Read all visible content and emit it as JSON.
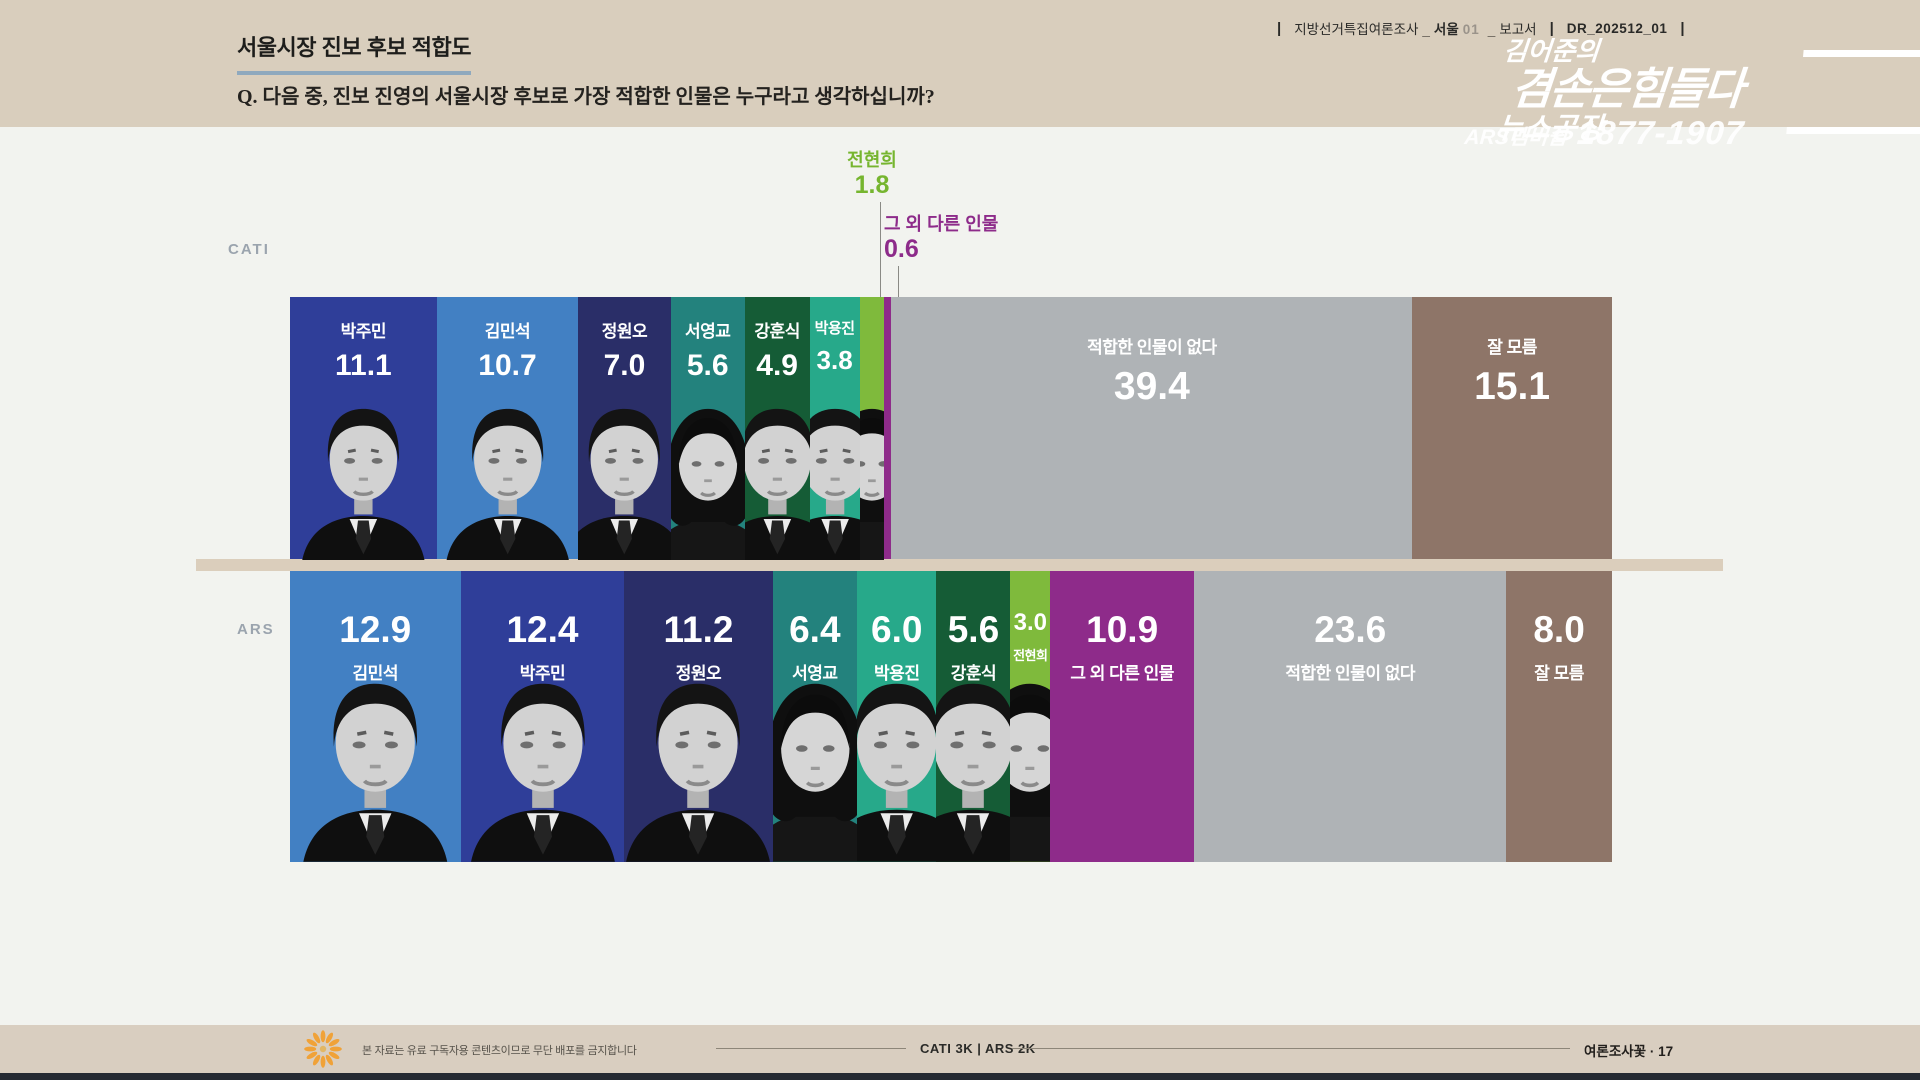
{
  "header": {
    "title": "서울시장 진보 후보 적합도",
    "question": "Q. 다음 중, 진보 진영의 서울시장 후보로 가장 적합한 인물은 누구라고 생각하십니까?",
    "meta": {
      "sep": "|",
      "survey": "지방선거특집여론조사",
      "joiner": "_",
      "region": "서울",
      "region_no": "01",
      "doc": "보고서",
      "code": "DR_202512_01"
    },
    "logo": {
      "line1": "김어준의",
      "line2": "겸손은힘들다",
      "line3": "뉴스공장",
      "membership": "ARS멤버쉽",
      "phone": "1877-1907"
    }
  },
  "side_labels": {
    "cati": "CATI",
    "ars": "ARS"
  },
  "footer": {
    "notice": "본 자료는 유료 구독자용 콘텐츠이므로 무단 배포를 금지합니다",
    "sample": "CATI 3K  |  ARS 2K",
    "brand": "여론조사꽃 · 17"
  },
  "colors": {
    "park_jumin": "#2F3E99",
    "kim_minseok": "#4280C3",
    "jung_wonoh": "#2A2E68",
    "seo_youngkyo": "#23827D",
    "kang_hunsik": "#155C36",
    "park_yongjin": "#27A98A",
    "jeon_hyunhee": "#7FBA3C",
    "other_person": "#8E2B8A",
    "no_suitable": "#AFB3B6",
    "dont_know": "#8E7568",
    "accent_underline": "#8FA9BE",
    "band": "#D9CEBD",
    "background": "#F2F3EF"
  },
  "chart_data": [
    {
      "type": "bar",
      "name": "CATI",
      "orientation": "horizontal_stacked",
      "unit": "%",
      "total": 100.0,
      "label_order": "name_first",
      "segments": [
        {
          "label": "박주민",
          "value": 11.1,
          "color": "#2F3E99",
          "avatar": "male",
          "show_label": true
        },
        {
          "label": "김민석",
          "value": 10.7,
          "color": "#4280C3",
          "avatar": "male",
          "show_label": true
        },
        {
          "label": "정원오",
          "value": 7.0,
          "color": "#2A2E68",
          "avatar": "male",
          "show_label": true
        },
        {
          "label": "서영교",
          "value": 5.6,
          "color": "#23827D",
          "avatar": "female",
          "show_label": true
        },
        {
          "label": "강훈식",
          "value": 4.9,
          "color": "#155C36",
          "avatar": "male",
          "show_label": true
        },
        {
          "label": "박용진",
          "value": 3.8,
          "color": "#27A98A",
          "avatar": "male",
          "show_label": true
        },
        {
          "label": "전현희",
          "value": 1.8,
          "color": "#7FBA3C",
          "avatar": "female",
          "show_label": false
        },
        {
          "label": "그 외 다른 인물",
          "value": 0.6,
          "color": "#8E2B8A",
          "avatar": null,
          "show_label": false
        },
        {
          "label": "적합한 인물이 없다",
          "value": 39.4,
          "color": "#AFB3B6",
          "avatar": null,
          "show_label": true
        },
        {
          "label": "잘 모름",
          "value": 15.1,
          "color": "#8E7568",
          "avatar": null,
          "show_label": true
        }
      ],
      "callouts": [
        {
          "label": "전현희",
          "value": 1.8,
          "color": "#76B52F"
        },
        {
          "label": "그 외 다른 인물",
          "value": 0.6,
          "color": "#8D2B8A"
        }
      ]
    },
    {
      "type": "bar",
      "name": "ARS",
      "orientation": "horizontal_stacked",
      "unit": "%",
      "total": 100.0,
      "label_order": "value_first",
      "segments": [
        {
          "label": "김민석",
          "value": 12.9,
          "color": "#4280C3",
          "avatar": "male",
          "show_label": true
        },
        {
          "label": "박주민",
          "value": 12.4,
          "color": "#2F3E99",
          "avatar": "male",
          "show_label": true
        },
        {
          "label": "정원오",
          "value": 11.2,
          "color": "#2A2E68",
          "avatar": "male",
          "show_label": true
        },
        {
          "label": "서영교",
          "value": 6.4,
          "color": "#23827D",
          "avatar": "female",
          "show_label": true
        },
        {
          "label": "박용진",
          "value": 6.0,
          "color": "#27A98A",
          "avatar": "male",
          "show_label": true
        },
        {
          "label": "강훈식",
          "value": 5.6,
          "color": "#155C36",
          "avatar": "male",
          "show_label": true
        },
        {
          "label": "전현희",
          "value": 3.0,
          "color": "#7FBA3C",
          "avatar": "female",
          "show_label": true
        },
        {
          "label": "그 외 다른 인물",
          "value": 10.9,
          "color": "#8E2B8A",
          "avatar": null,
          "show_label": true
        },
        {
          "label": "적합한 인물이 없다",
          "value": 23.6,
          "color": "#AFB3B6",
          "avatar": null,
          "show_label": true
        },
        {
          "label": "잘 모름",
          "value": 8.0,
          "color": "#8E7568",
          "avatar": null,
          "show_label": true
        }
      ]
    }
  ]
}
